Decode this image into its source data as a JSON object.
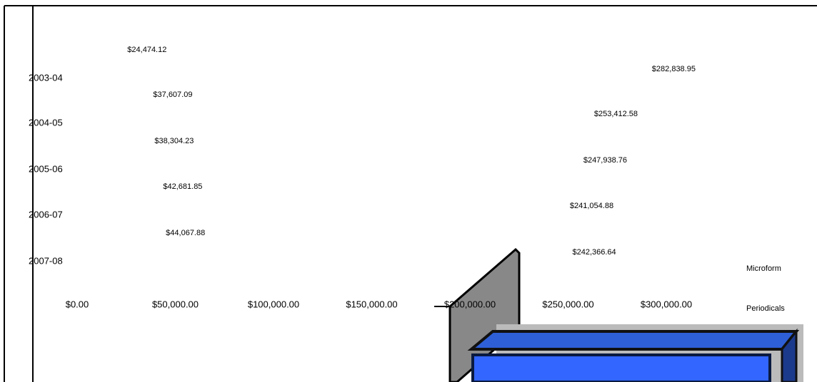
{
  "chart_data": {
    "type": "barh",
    "categories": [
      "2003-04",
      "2004-05",
      "2005-06",
      "2006-07",
      "2007-08"
    ],
    "series": [
      {
        "name": "Microform",
        "values": [
          24474.12,
          37607.09,
          38304.23,
          42681.85,
          44067.88
        ],
        "value_labels": [
          "$24,474.12",
          "$37,607.09",
          "$38,304.23",
          "$42,681.85",
          "$44,067.88"
        ]
      },
      {
        "name": "Periodicals",
        "values": [
          282838.95,
          253412.58,
          247938.76,
          241054.88,
          242366.64
        ],
        "value_labels": [
          "$282,838.95",
          "$253,412.58",
          "$247,938.76",
          "$241,054.88",
          "$242,366.64"
        ]
      }
    ],
    "xlim": [
      0,
      300000
    ],
    "xticks": [
      {
        "value": 0,
        "label": "$0.00"
      },
      {
        "value": 50000,
        "label": "$50,000.00"
      },
      {
        "value": 100000,
        "label": "$100,000.00"
      },
      {
        "value": 150000,
        "label": "$150,000.00"
      },
      {
        "value": 200000,
        "label": "$200,000.00"
      },
      {
        "value": 250000,
        "label": "$250,000.00"
      },
      {
        "value": 300000,
        "label": "$300,000.00"
      }
    ]
  }
}
